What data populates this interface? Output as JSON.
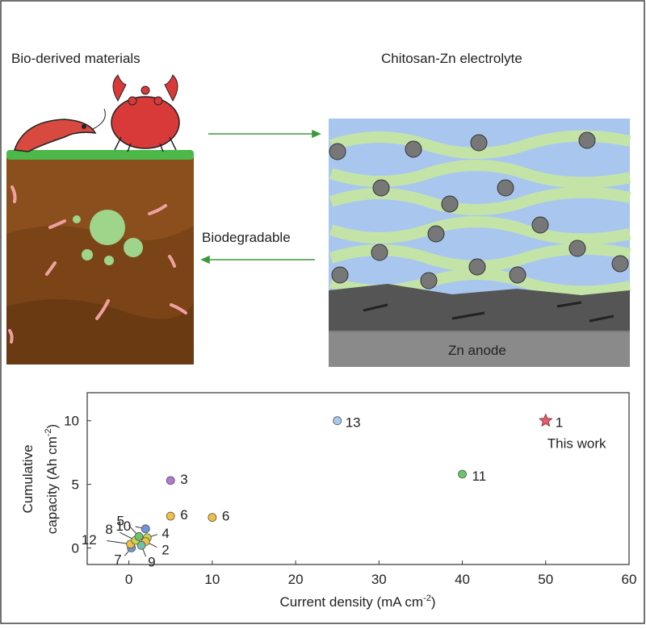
{
  "figure": {
    "left_title": "Bio-derived materials",
    "right_title": "Chitosan-Zn electrolyte",
    "arrow_label": "Biodegradable",
    "anode_label": "Zn anode"
  },
  "chart_data": {
    "type": "scatter",
    "x": [
      50,
      25,
      40,
      5,
      5,
      10,
      2,
      2.2,
      2,
      1.5,
      0.3,
      0.2,
      0.8,
      1.2
    ],
    "values": [
      10,
      10,
      5.8,
      5.3,
      2.5,
      2.4,
      1.5,
      0.8,
      0.5,
      0.2,
      0.0,
      0.3,
      0.6,
      0.9
    ],
    "point_labels": [
      "1",
      "13",
      "11",
      "3",
      "6",
      "6",
      "10",
      "4",
      "2",
      "9",
      "7",
      "12",
      "8",
      "5"
    ],
    "colors": [
      "#e0606e",
      "#a9c8ef",
      "#6cc46c",
      "#b07ad0",
      "#f0c040",
      "#f0c040",
      "#6f95d8",
      "#c8d848",
      "#f0c040",
      "#6cc4a8",
      "#6f95d8",
      "#f0c040",
      "#c8d848",
      "#6cc46c"
    ],
    "markers": [
      "star",
      "circle",
      "circle",
      "circle",
      "circle",
      "circle",
      "circle",
      "circle",
      "circle",
      "circle",
      "circle",
      "circle",
      "circle",
      "circle"
    ],
    "annotation": "This work",
    "xlabel": {
      "main": "Current density (mA cm",
      "sup": "-2",
      "end": ")"
    },
    "ylabel": {
      "line1": "Cumulative",
      "main": "capacity (Ah cm",
      "sup": "-2",
      "end": ")"
    },
    "xlim": [
      -5,
      60
    ],
    "xticks": [
      0,
      10,
      20,
      30,
      40,
      50,
      60
    ],
    "ylim": [
      -1.3,
      12.2
    ],
    "yticks": [
      0,
      5,
      10
    ]
  }
}
